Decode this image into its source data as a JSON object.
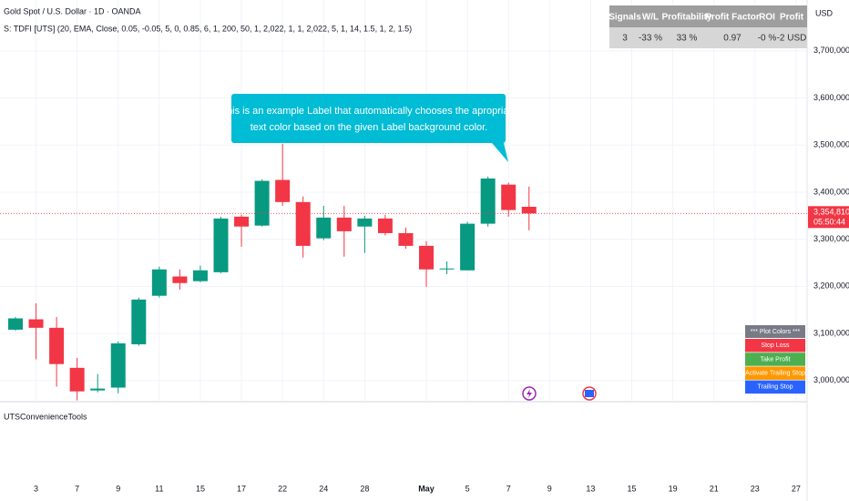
{
  "chart_data": {
    "type": "candlestick",
    "title": "Gold Spot / U.S. Dollar · 1D · OANDA",
    "subtitle": "S: TDFI [UTS] (20, EMA, Close, 0.05, -0.05, 5, 0, 0.85, 6, 1, 200, 50, 1, 2,022, 1, 1, 2,022, 5, 1, 14, 1.5, 1, 2, 1.5)",
    "currency": "USD",
    "categories": [
      null,
      "3",
      null,
      "7",
      null,
      "9",
      null,
      "11",
      null,
      "15",
      null,
      "17",
      null,
      "22",
      null,
      "24",
      null,
      "28",
      null,
      null,
      "May",
      null,
      "5",
      null,
      "7",
      null,
      "9",
      null,
      "13",
      null,
      "15",
      null,
      "19",
      null,
      "21",
      null,
      "23",
      null,
      "27"
    ],
    "series": [
      {
        "name": "XAUUSD",
        "up_color": "#089981",
        "down_color": "#f23645",
        "open": [
          3108000,
          3130000,
          3112000,
          3027000,
          2979000,
          2985000,
          3077000,
          3180000,
          3221000,
          3211000,
          3230000,
          3348000,
          3329000,
          3426000,
          3379000,
          3302000,
          3346000,
          3327000,
          3344000,
          3313000,
          3286000,
          3236000,
          3234000,
          3333000,
          3416000,
          3369000,
          null,
          null,
          null,
          null,
          null,
          null,
          null,
          null,
          null,
          null,
          null,
          null,
          null
        ],
        "high": [
          3135000,
          3164000,
          3135000,
          3048000,
          3014000,
          3083000,
          3176000,
          3242000,
          3236000,
          3244000,
          3348000,
          3352000,
          3427000,
          3503000,
          3391000,
          3371000,
          3371000,
          3350000,
          3352000,
          3325000,
          3296000,
          3253000,
          3337000,
          3433000,
          3420000,
          3412000,
          null,
          null,
          null,
          null,
          null,
          null,
          null,
          null,
          null,
          null,
          null,
          null,
          null
        ],
        "low": [
          3106000,
          3045000,
          2987000,
          2958000,
          2975000,
          2973000,
          3074000,
          3176000,
          3193000,
          3209000,
          3228000,
          3284000,
          3327000,
          3371000,
          3261000,
          3298000,
          3263000,
          3271000,
          3308000,
          3280000,
          3199000,
          3226000,
          3234000,
          3327000,
          3348000,
          3319000,
          null,
          null,
          null,
          null,
          null,
          null,
          null,
          null,
          null,
          null,
          null,
          null,
          null
        ],
        "close": [
          3132000,
          3112000,
          3035000,
          2977000,
          2983000,
          3079000,
          3172000,
          3236000,
          3207000,
          3234000,
          3344000,
          3327000,
          3424000,
          3379000,
          3286000,
          3346000,
          3317000,
          3344000,
          3313000,
          3286000,
          3236000,
          3238000,
          3333000,
          3429000,
          3362000,
          3354810,
          null,
          null,
          null,
          null,
          null,
          null,
          null,
          null,
          null,
          null,
          null,
          null,
          null
        ]
      }
    ],
    "last_price": {
      "value": 3354810,
      "label": "3,354,810"
    },
    "countdown": "05:50:44",
    "ylim": [
      2957000,
      3808000
    ],
    "yticks": [
      {
        "value": 3000000,
        "label": "3,000,000"
      },
      {
        "value": 3100000,
        "label": "3,100,000"
      },
      {
        "value": 3200000,
        "label": "3,200,000"
      },
      {
        "value": 3300000,
        "label": "3,300,000"
      },
      {
        "value": 3400000,
        "label": "3,400,000"
      },
      {
        "value": 3500000,
        "label": "3,500,000"
      },
      {
        "value": 3600000,
        "label": "3,600,000"
      },
      {
        "value": 3700000,
        "label": "3,700,000"
      }
    ],
    "grid": true,
    "annotation": {
      "lines": [
        "This is an example Label that automatically chooses the apropriate",
        "text color based on the given Label background color."
      ],
      "color": "#00bcd4"
    },
    "pane_label": "UTSConvenienceTools"
  },
  "stats_table": {
    "header": [
      "Signals",
      "W/L",
      "Profitability",
      "Profit Factor",
      "ROI",
      "Profit"
    ],
    "row": [
      "3",
      "-33 %",
      "33 %",
      "0.97",
      "-0 %",
      "-2 USD"
    ]
  },
  "plot_colors": {
    "title": "*** Plot Colors ***",
    "items": [
      {
        "label": "Stop Loss",
        "color": "#f23645"
      },
      {
        "label": "Take Profit",
        "color": "#4caf50"
      },
      {
        "label": "Activate Trailing Stop",
        "color": "#ff9800"
      },
      {
        "label": "Trailing Stop",
        "color": "#2962ff"
      }
    ]
  }
}
